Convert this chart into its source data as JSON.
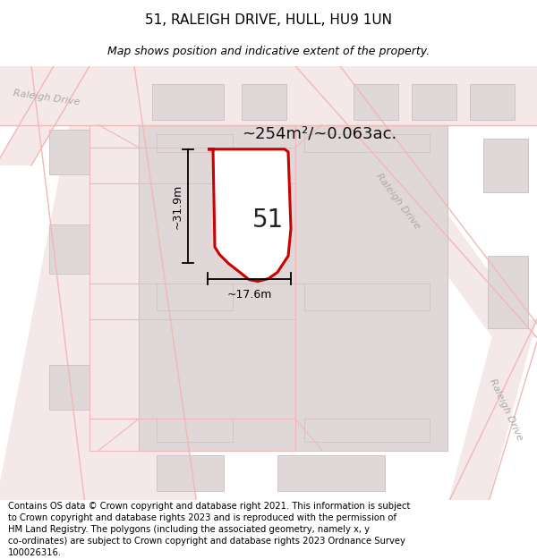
{
  "title": "51, RALEIGH DRIVE, HULL, HU9 1UN",
  "subtitle": "Map shows position and indicative extent of the property.",
  "footer": "Contains OS data © Crown copyright and database right 2021. This information is subject to Crown copyright and database rights 2023 and is reproduced with the permission of HM Land Registry. The polygons (including the associated geometry, namely x, y co-ordinates) are subject to Crown copyright and database rights 2023 Ordnance Survey 100026316.",
  "map_bg": "#f7f3f3",
  "road_line_color": "#f0b8b8",
  "block_fill": "#e0d8d8",
  "block_stroke": "#d0c4c4",
  "highlight_fill": "#ffffff",
  "highlight_stroke": "#cc0000",
  "area_text": "~254m²/~0.063ac.",
  "number_text": "51",
  "width_text": "~17.6m",
  "height_text": "~31.9m",
  "road_label_color": "#aaaaaa",
  "title_fontsize": 11,
  "subtitle_fontsize": 9,
  "footer_fontsize": 7.2,
  "annotation_fontsize": 13,
  "number_fontsize": 20,
  "dim_fontsize": 9
}
